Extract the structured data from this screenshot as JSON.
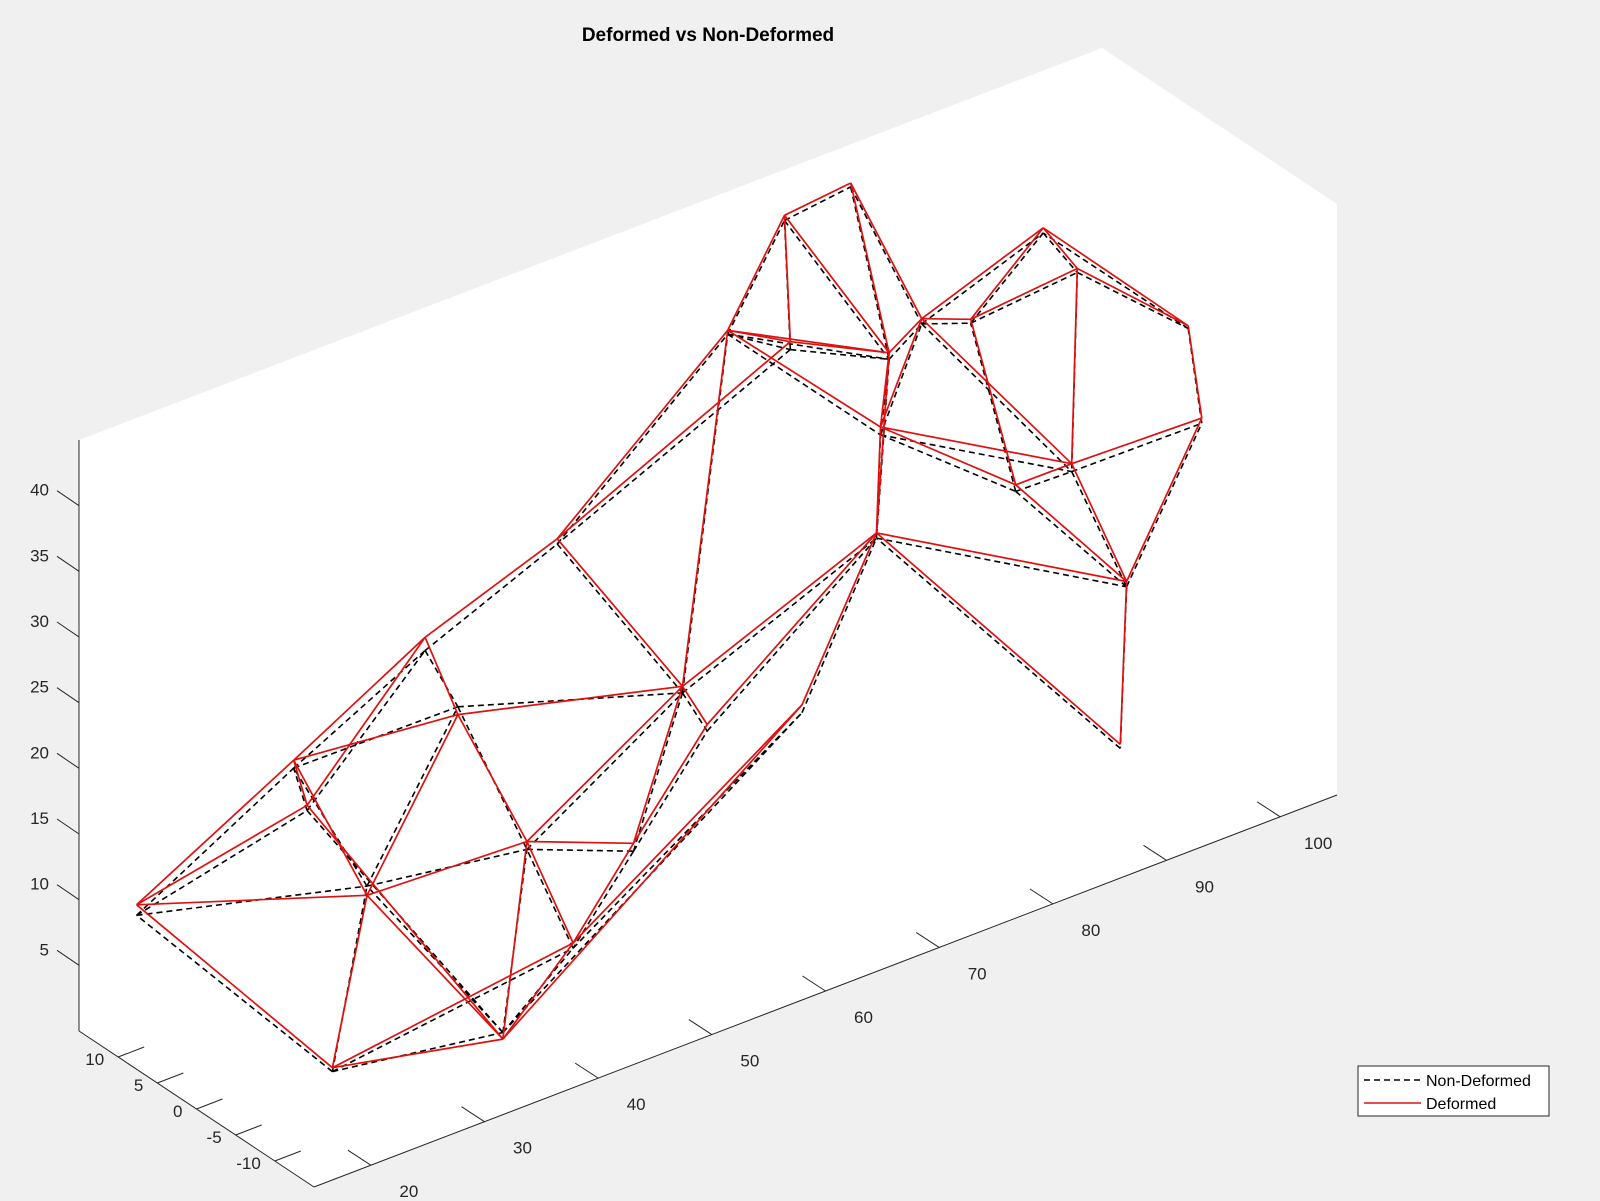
{
  "chart_data": {
    "type": "line",
    "title": "Deformed vs Non-Deformed",
    "xlabel": "",
    "ylabel": "",
    "zlabel": "",
    "xlim": [
      15,
      105
    ],
    "ylim": [
      -15,
      15
    ],
    "zlim": [
      0,
      45
    ],
    "xticks": [
      "20",
      "30",
      "40",
      "50",
      "60",
      "70",
      "80",
      "90",
      "100"
    ],
    "yticks": [
      "-10",
      "-5",
      "0",
      "5",
      "10"
    ],
    "zticks": [
      "5",
      "10",
      "15",
      "20",
      "25",
      "30",
      "35",
      "40"
    ],
    "legend_position": "bottom-right",
    "colors": {
      "non_deformed": "#000000",
      "deformed": "#e01010"
    },
    "series": [
      {
        "name": "Non-Deformed",
        "style": "dashed",
        "nodes": {
          "n1": [
            18,
            -13,
            7
          ],
          "n2": [
            18,
            12,
            9
          ],
          "n3": [
            33,
            -13,
            5
          ],
          "n4": [
            33,
            12,
            12
          ],
          "n5": [
            30,
            0,
            12
          ],
          "n6": [
            27,
            5,
            20
          ],
          "n7": [
            42,
            10,
            22
          ],
          "n8": [
            38,
            0,
            23
          ],
          "n9": [
            42,
            -3,
            12
          ],
          "n10": [
            55,
            12,
            25
          ],
          "n11": [
            55,
            -4,
            20
          ],
          "n12": [
            50,
            -5,
            10
          ],
          "n13": [
            44,
            -6,
            5
          ],
          "n14": [
            70,
            12,
            36
          ],
          "n15": [
            70,
            4,
            38
          ],
          "n16": [
            75,
            12,
            43
          ],
          "n17": [
            76,
            5,
            48
          ],
          "n18": [
            78,
            3,
            35
          ],
          "n19": [
            70,
            -7,
            28
          ],
          "n20": [
            80,
            7,
            27
          ],
          "n21": [
            85,
            9,
            33
          ],
          "n22": [
            90,
            10,
            31
          ],
          "n23": [
            95,
            8,
            37
          ],
          "n24": [
            85,
            -3,
            25
          ],
          "n25": [
            92,
            0,
            23
          ],
          "n26": [
            92,
            -7,
            17
          ],
          "n27": [
            88,
            -12,
            8
          ],
          "n28": [
            100,
            -5,
            26
          ],
          "n29": [
            105,
            4,
            28
          ],
          "n30": [
            98,
            8,
            33
          ],
          "n31": [
            60,
            -12,
            20
          ],
          "n32": [
            62,
            3,
            12
          ]
        },
        "edges": [
          [
            "n1",
            "n2"
          ],
          [
            "n1",
            "n3"
          ],
          [
            "n2",
            "n4"
          ],
          [
            "n3",
            "n4"
          ],
          [
            "n1",
            "n5"
          ],
          [
            "n2",
            "n5"
          ],
          [
            "n3",
            "n5"
          ],
          [
            "n4",
            "n6"
          ],
          [
            "n2",
            "n6"
          ],
          [
            "n5",
            "n6"
          ],
          [
            "n4",
            "n7"
          ],
          [
            "n6",
            "n7"
          ],
          [
            "n6",
            "n8"
          ],
          [
            "n7",
            "n8"
          ],
          [
            "n5",
            "n8"
          ],
          [
            "n8",
            "n9"
          ],
          [
            "n5",
            "n9"
          ],
          [
            "n3",
            "n9"
          ],
          [
            "n7",
            "n10"
          ],
          [
            "n8",
            "n11"
          ],
          [
            "n9",
            "n11"
          ],
          [
            "n10",
            "n11"
          ],
          [
            "n11",
            "n12"
          ],
          [
            "n9",
            "n12"
          ],
          [
            "n12",
            "n13"
          ],
          [
            "n3",
            "n13"
          ],
          [
            "n1",
            "n13"
          ],
          [
            "n13",
            "n9"
          ],
          [
            "n10",
            "n14"
          ],
          [
            "n11",
            "n14"
          ],
          [
            "n14",
            "n15"
          ],
          [
            "n15",
            "n10"
          ],
          [
            "n15",
            "n16"
          ],
          [
            "n14",
            "n16"
          ],
          [
            "n16",
            "n17"
          ],
          [
            "n15",
            "n18"
          ],
          [
            "n17",
            "n18"
          ],
          [
            "n16",
            "n18"
          ],
          [
            "n14",
            "n18"
          ],
          [
            "n18",
            "n19"
          ],
          [
            "n11",
            "n19"
          ],
          [
            "n19",
            "n20"
          ],
          [
            "n18",
            "n20"
          ],
          [
            "n20",
            "n21"
          ],
          [
            "n18",
            "n21"
          ],
          [
            "n21",
            "n22"
          ],
          [
            "n22",
            "n23"
          ],
          [
            "n21",
            "n23"
          ],
          [
            "n20",
            "n24"
          ],
          [
            "n24",
            "n25"
          ],
          [
            "n25",
            "n26"
          ],
          [
            "n24",
            "n26"
          ],
          [
            "n19",
            "n26"
          ],
          [
            "n26",
            "n27"
          ],
          [
            "n27",
            "n19"
          ],
          [
            "n26",
            "n28"
          ],
          [
            "n28",
            "n29"
          ],
          [
            "n29",
            "n23"
          ],
          [
            "n23",
            "n30"
          ],
          [
            "n30",
            "n29"
          ],
          [
            "n22",
            "n30"
          ],
          [
            "n25",
            "n28"
          ],
          [
            "n24",
            "n22"
          ],
          [
            "n17",
            "n21"
          ],
          [
            "n14",
            "n20"
          ],
          [
            "n13",
            "n31"
          ],
          [
            "n31",
            "n19"
          ],
          [
            "n12",
            "n32"
          ],
          [
            "n32",
            "n19"
          ],
          [
            "n11",
            "n32"
          ],
          [
            "n3",
            "n31"
          ],
          [
            "n21",
            "n25"
          ],
          [
            "n20",
            "n25"
          ],
          [
            "n30",
            "n25"
          ]
        ]
      },
      {
        "name": "Deformed",
        "style": "solid",
        "nodes": {
          "n1": [
            18,
            -13,
            7.3
          ],
          "n2": [
            18,
            12,
            9.8
          ],
          "n3": [
            33,
            -13,
            4.5
          ],
          "n4": [
            33,
            12,
            12.4
          ],
          "n5": [
            30,
            0,
            11.3
          ],
          "n6": [
            27,
            5,
            20.6
          ],
          "n7": [
            42,
            10,
            23
          ],
          "n8": [
            38,
            0,
            22.4
          ],
          "n9": [
            42,
            -3,
            12.6
          ],
          "n10": [
            55,
            12,
            25.4
          ],
          "n11": [
            55,
            -4,
            20.5
          ],
          "n12": [
            50,
            -5,
            10.6
          ],
          "n13": [
            44,
            -6,
            5.4
          ],
          "n14": [
            70,
            12,
            36.3
          ],
          "n15": [
            70,
            4,
            38.6
          ],
          "n16": [
            75,
            12,
            43.4
          ],
          "n17": [
            76,
            5,
            48.3
          ],
          "n18": [
            78,
            3,
            35.5
          ],
          "n19": [
            70,
            -7,
            28.4
          ],
          "n20": [
            80,
            7,
            27.6
          ],
          "n21": [
            85,
            9,
            33.4
          ],
          "n22": [
            90,
            10,
            31.3
          ],
          "n23": [
            95,
            8,
            37.4
          ],
          "n24": [
            85,
            -3,
            25.5
          ],
          "n25": [
            92,
            0,
            23.6
          ],
          "n26": [
            92,
            -7,
            17.4
          ],
          "n27": [
            88,
            -12,
            8.3
          ],
          "n28": [
            100,
            -5,
            26.4
          ],
          "n29": [
            105,
            4,
            28.2
          ],
          "n30": [
            98,
            8,
            33.3
          ],
          "n31": [
            60,
            -12,
            20.6
          ],
          "n32": [
            62,
            3,
            12.5
          ]
        },
        "edges": [
          [
            "n1",
            "n2"
          ],
          [
            "n1",
            "n3"
          ],
          [
            "n2",
            "n4"
          ],
          [
            "n3",
            "n4"
          ],
          [
            "n1",
            "n5"
          ],
          [
            "n2",
            "n5"
          ],
          [
            "n3",
            "n5"
          ],
          [
            "n4",
            "n6"
          ],
          [
            "n2",
            "n6"
          ],
          [
            "n5",
            "n6"
          ],
          [
            "n4",
            "n7"
          ],
          [
            "n6",
            "n7"
          ],
          [
            "n6",
            "n8"
          ],
          [
            "n7",
            "n8"
          ],
          [
            "n5",
            "n8"
          ],
          [
            "n8",
            "n9"
          ],
          [
            "n5",
            "n9"
          ],
          [
            "n3",
            "n9"
          ],
          [
            "n7",
            "n10"
          ],
          [
            "n8",
            "n11"
          ],
          [
            "n9",
            "n11"
          ],
          [
            "n10",
            "n11"
          ],
          [
            "n11",
            "n12"
          ],
          [
            "n9",
            "n12"
          ],
          [
            "n12",
            "n13"
          ],
          [
            "n3",
            "n13"
          ],
          [
            "n1",
            "n13"
          ],
          [
            "n13",
            "n9"
          ],
          [
            "n10",
            "n14"
          ],
          [
            "n11",
            "n14"
          ],
          [
            "n14",
            "n15"
          ],
          [
            "n15",
            "n10"
          ],
          [
            "n15",
            "n16"
          ],
          [
            "n14",
            "n16"
          ],
          [
            "n16",
            "n17"
          ],
          [
            "n15",
            "n18"
          ],
          [
            "n17",
            "n18"
          ],
          [
            "n16",
            "n18"
          ],
          [
            "n14",
            "n18"
          ],
          [
            "n18",
            "n19"
          ],
          [
            "n11",
            "n19"
          ],
          [
            "n19",
            "n20"
          ],
          [
            "n18",
            "n20"
          ],
          [
            "n20",
            "n21"
          ],
          [
            "n18",
            "n21"
          ],
          [
            "n21",
            "n22"
          ],
          [
            "n22",
            "n23"
          ],
          [
            "n21",
            "n23"
          ],
          [
            "n20",
            "n24"
          ],
          [
            "n24",
            "n25"
          ],
          [
            "n25",
            "n26"
          ],
          [
            "n24",
            "n26"
          ],
          [
            "n19",
            "n26"
          ],
          [
            "n26",
            "n27"
          ],
          [
            "n27",
            "n19"
          ],
          [
            "n26",
            "n28"
          ],
          [
            "n28",
            "n29"
          ],
          [
            "n29",
            "n23"
          ],
          [
            "n23",
            "n30"
          ],
          [
            "n30",
            "n29"
          ],
          [
            "n22",
            "n30"
          ],
          [
            "n25",
            "n28"
          ],
          [
            "n24",
            "n22"
          ],
          [
            "n17",
            "n21"
          ],
          [
            "n14",
            "n20"
          ],
          [
            "n13",
            "n31"
          ],
          [
            "n31",
            "n19"
          ],
          [
            "n12",
            "n32"
          ],
          [
            "n32",
            "n19"
          ],
          [
            "n11",
            "n32"
          ],
          [
            "n3",
            "n31"
          ],
          [
            "n21",
            "n25"
          ],
          [
            "n20",
            "n25"
          ],
          [
            "n30",
            "n25"
          ]
        ]
      }
    ]
  }
}
